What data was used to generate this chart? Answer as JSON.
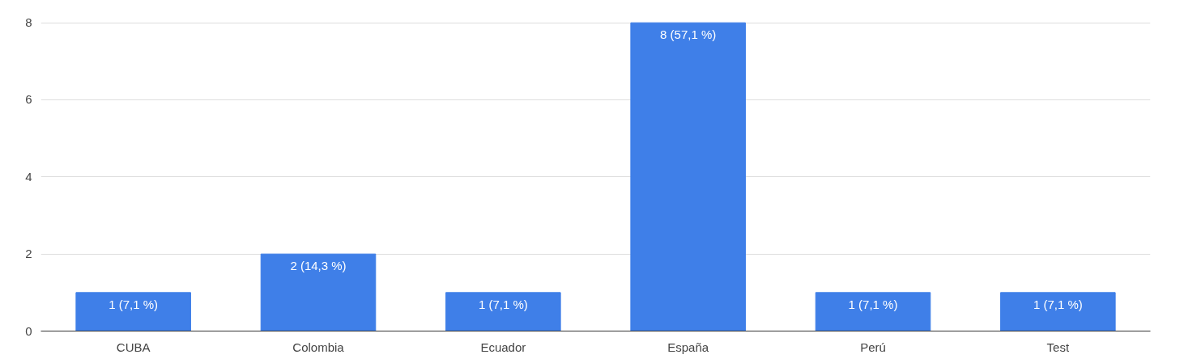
{
  "chart_data": {
    "type": "bar",
    "categories": [
      "CUBA",
      "Colombia",
      "Ecuador",
      "España",
      "Perú",
      "Test"
    ],
    "values": [
      1,
      2,
      1,
      8,
      1,
      1
    ],
    "color": "#3f7fe8",
    "value_labels": [
      "1 (7,1 %)",
      "2 (14,3 %)",
      "1 (7,1 %)",
      "8 (57,1 %)",
      "1 (7,1 %)",
      "1 (7,1 %)"
    ],
    "ylim": [
      0,
      8
    ],
    "yticks": [
      0,
      2,
      4,
      6,
      8
    ],
    "grid": "y"
  }
}
